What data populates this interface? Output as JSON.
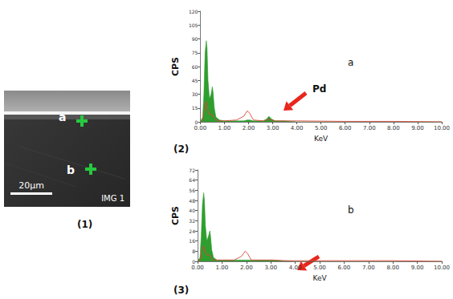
{
  "micrograph": {
    "label": "(1)",
    "points": [
      {
        "label": "a"
      },
      {
        "label": "b"
      }
    ],
    "scale_bar": "20µm",
    "tag": "IMG 1"
  },
  "chart_data": [
    {
      "type": "line",
      "title": "(2)",
      "x_label": "KeV",
      "y_label": "CPS",
      "annotations": [
        "a",
        "Pd"
      ],
      "grid": false,
      "x": [
        0.0,
        0.1,
        0.15,
        0.2,
        0.25,
        0.28,
        0.32,
        0.38,
        0.45,
        0.5,
        0.53,
        0.58,
        0.65,
        0.8,
        1.0,
        1.5,
        1.8,
        1.95,
        2.05,
        2.2,
        2.6,
        2.75,
        2.84,
        2.95,
        3.1,
        3.5,
        4.0,
        6.0,
        8.0,
        10.0
      ],
      "series": [
        {
          "type": "area",
          "color": "#2e9e2e",
          "values": [
            0,
            5,
            30,
            75,
            88,
            80,
            45,
            25,
            30,
            38,
            32,
            15,
            5,
            2,
            1,
            1,
            1,
            2,
            2,
            1,
            1,
            3,
            6,
            3,
            1,
            1,
            0,
            0,
            0,
            0
          ]
        },
        {
          "type": "line",
          "color": "#e0443a",
          "values": [
            0,
            2,
            10,
            20,
            22,
            18,
            12,
            8,
            8,
            8,
            6,
            4,
            2,
            1,
            1,
            2,
            6,
            12,
            9,
            2,
            1,
            2,
            3,
            2,
            1,
            1,
            1,
            0.5,
            0.5,
            0
          ]
        }
      ],
      "xlim": [
        0,
        10
      ],
      "xticks": [
        {
          "value": 0,
          "label": "0.00"
        },
        {
          "value": 1,
          "label": "1.00"
        },
        {
          "value": 2,
          "label": "2.00"
        },
        {
          "value": 3,
          "label": "3.00"
        },
        {
          "value": 4,
          "label": "4.00"
        },
        {
          "value": 5,
          "label": "5.00"
        },
        {
          "value": 6,
          "label": "6.00"
        },
        {
          "value": 7,
          "label": "7.00"
        },
        {
          "value": 8,
          "label": "8.00"
        },
        {
          "value": 9,
          "label": "9.00"
        },
        {
          "value": 10,
          "label": "10.00"
        }
      ],
      "ylim": [
        0,
        120
      ],
      "yticks": [
        0,
        15,
        30,
        45,
        60,
        75,
        90,
        105,
        120
      ]
    },
    {
      "type": "line",
      "title": "(3)",
      "x_label": "KeV",
      "y_label": "CPS",
      "annotations": [
        "b"
      ],
      "grid": false,
      "x": [
        0.0,
        0.1,
        0.15,
        0.2,
        0.25,
        0.28,
        0.32,
        0.38,
        0.45,
        0.5,
        0.53,
        0.58,
        0.65,
        0.8,
        1.0,
        1.5,
        1.8,
        1.95,
        2.05,
        2.2,
        2.6,
        2.75,
        2.84,
        2.95,
        3.1,
        3.5,
        4.0,
        6.0,
        8.0,
        10.0
      ],
      "series": [
        {
          "type": "area",
          "color": "#2e9e2e",
          "values": [
            0,
            3,
            20,
            45,
            54,
            48,
            28,
            16,
            20,
            24,
            20,
            9,
            3,
            1,
            1,
            1,
            1,
            1,
            1,
            1,
            1,
            1,
            1,
            1,
            1,
            0.5,
            0,
            0,
            0,
            0
          ]
        },
        {
          "type": "line",
          "color": "#e0443a",
          "values": [
            0,
            1,
            5,
            10,
            12,
            10,
            7,
            5,
            5,
            5,
            4,
            2,
            1,
            1,
            1,
            1,
            4,
            8,
            6,
            1,
            1,
            1,
            1,
            1,
            1,
            0.5,
            0.5,
            0.5,
            0.5,
            0
          ]
        }
      ],
      "xlim": [
        0,
        10
      ],
      "xticks": [
        {
          "value": 0,
          "label": "0.00"
        },
        {
          "value": 1,
          "label": "1.00"
        },
        {
          "value": 2,
          "label": "2.00"
        },
        {
          "value": 3,
          "label": "3.00"
        },
        {
          "value": 4,
          "label": "4.00"
        },
        {
          "value": 5,
          "label": "5.00"
        },
        {
          "value": 6,
          "label": "6.00"
        },
        {
          "value": 7,
          "label": "7.00"
        },
        {
          "value": 8,
          "label": "8.00"
        },
        {
          "value": 9,
          "label": "9.00"
        },
        {
          "value": 10,
          "label": "10.00"
        }
      ],
      "ylim": [
        0,
        72
      ],
      "yticks": [
        0,
        8,
        16,
        24,
        32,
        40,
        48,
        56,
        64,
        72
      ]
    }
  ]
}
